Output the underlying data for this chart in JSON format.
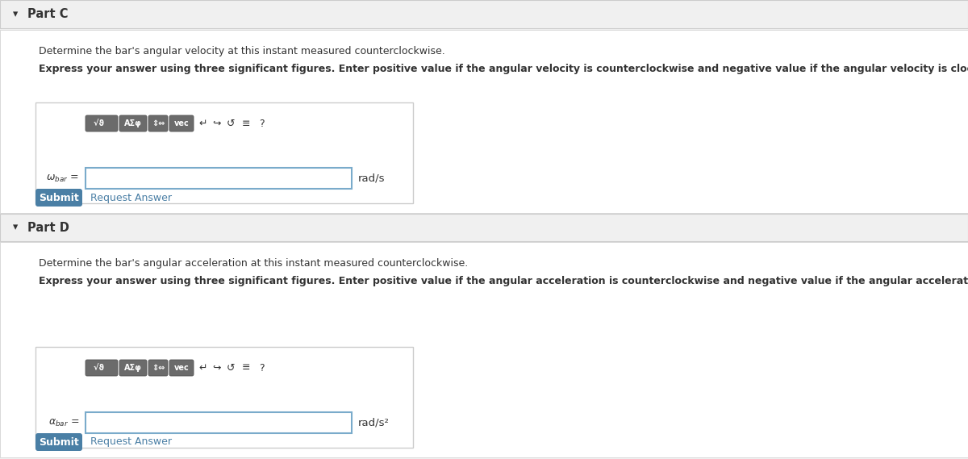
{
  "bg_color": "#f0f0f0",
  "white": "#ffffff",
  "border_color": "#cccccc",
  "button_color": "#4a7fa5",
  "button_text": "#ffffff",
  "link_color": "#4a7fa5",
  "text_color": "#333333",
  "input_border": "#7aabcb",
  "toolbar_btn_bg": "#6b6b6b",
  "toolbar_btn_text": "#ffffff",
  "part_c_header": "Part C",
  "part_d_header": "Part D",
  "part_c_desc1": "Determine the bar's angular velocity at this instant measured counterclockwise.",
  "part_c_desc2": "Express your answer using three significant figures. Enter positive value if the angular velocity is counterclockwise and negative value if the angular velocity is clockwise.",
  "part_d_desc1": "Determine the bar's angular acceleration at this instant measured counterclockwise.",
  "part_d_desc2": "Express your answer using three significant figures. Enter positive value if the angular acceleration is counterclockwise and negative value if the angular acceleration is clockwise.",
  "omega_label": "$\\omega_{bar}$ =",
  "alpha_label": "$\\alpha_{bar}$ =",
  "unit_c": "rad/s",
  "unit_d": "rad/s²",
  "submit_text": "Submit",
  "request_text": "Request Answer",
  "arrow_down": "▾"
}
